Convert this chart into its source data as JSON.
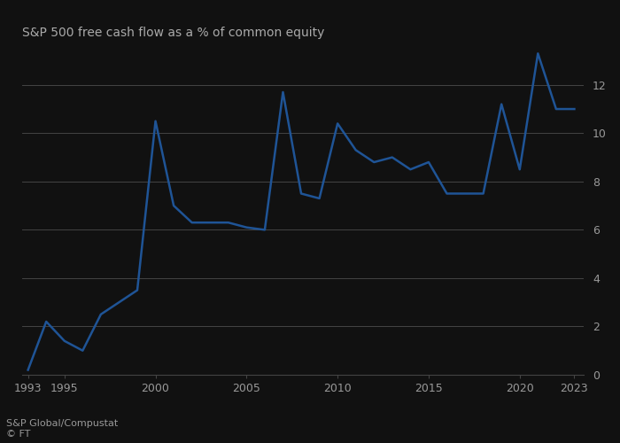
{
  "title": "S&P 500 free cash flow as a % of common equity",
  "source_line1": "S&P Global/Compustat",
  "source_line2": "© FT",
  "line_color": "#1f5496",
  "background_color": "#111111",
  "plot_bg_color": "#111111",
  "grid_color": "#444444",
  "text_color": "#999999",
  "title_color": "#aaaaaa",
  "years": [
    1993,
    1994,
    1995,
    1996,
    1997,
    1998,
    1999,
    2000,
    2001,
    2002,
    2003,
    2004,
    2005,
    2006,
    2007,
    2008,
    2009,
    2010,
    2011,
    2012,
    2013,
    2014,
    2015,
    2016,
    2017,
    2018,
    2019,
    2020,
    2021,
    2022,
    2023
  ],
  "values": [
    0.2,
    2.2,
    1.4,
    1.0,
    2.5,
    3.0,
    3.5,
    10.5,
    7.0,
    6.3,
    6.3,
    6.3,
    6.1,
    6.0,
    11.7,
    7.5,
    7.3,
    10.4,
    9.3,
    8.8,
    9.0,
    8.5,
    8.8,
    7.5,
    7.5,
    7.5,
    11.2,
    8.5,
    13.3,
    11.0,
    11.0
  ],
  "ylim": [
    0,
    13.5
  ],
  "yticks": [
    0,
    2,
    4,
    6,
    8,
    10,
    12
  ],
  "xlim_min": 1993,
  "xlim_max": 2023.5,
  "xticks": [
    1993,
    1995,
    2000,
    2005,
    2010,
    2015,
    2020,
    2023
  ],
  "line_width": 1.8,
  "title_fontsize": 10,
  "tick_fontsize": 9,
  "source_fontsize": 8
}
